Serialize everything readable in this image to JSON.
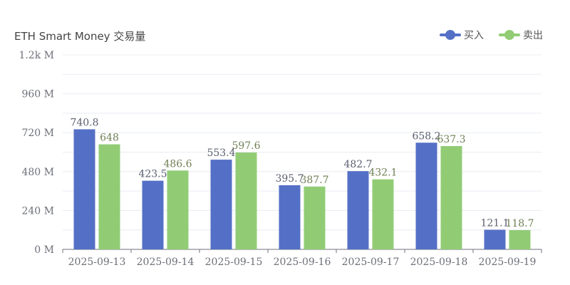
{
  "colors": {
    "buy": "#5470c6",
    "sell": "#91cc75",
    "axis_text": "#6e7079",
    "grid": "#e8ecf2",
    "axis_line": "#6e7079"
  },
  "chart_data": {
    "type": "bar",
    "title": "ETH Smart Money 交易量",
    "categories": [
      "2025-09-13",
      "2025-09-14",
      "2025-09-15",
      "2025-09-16",
      "2025-09-17",
      "2025-09-18",
      "2025-09-19"
    ],
    "series": [
      {
        "name": "买入",
        "values": [
          740.8,
          423.5,
          553.4,
          395.7,
          482.7,
          658.2,
          121.1
        ]
      },
      {
        "name": "卖出",
        "values": [
          648,
          486.6,
          597.6,
          387.7,
          432.1,
          637.3,
          118.7
        ]
      }
    ],
    "ylim": [
      0,
      1200
    ],
    "yticks": [
      {
        "value": 0,
        "label": "0 M"
      },
      {
        "value": 240,
        "label": "240 M"
      },
      {
        "value": 480,
        "label": "480 M"
      },
      {
        "value": 720,
        "label": "720 M"
      },
      {
        "value": 960,
        "label": "960 M"
      },
      {
        "value": 1200,
        "label": "1.2k M"
      }
    ],
    "grid": true,
    "legend_position": "top-right",
    "data_labels": true
  }
}
